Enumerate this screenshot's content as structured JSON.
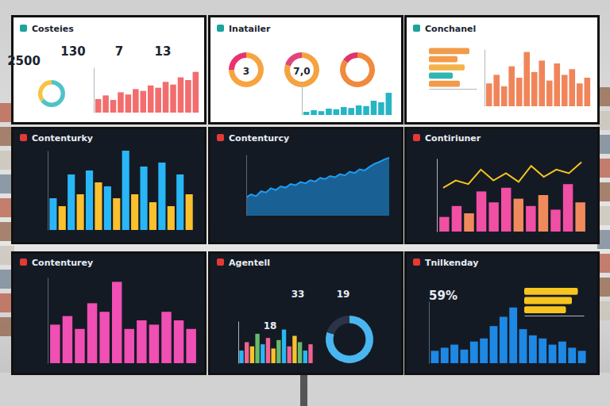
{
  "chart_data": [
    {
      "type": "bar",
      "title": "Costeies",
      "annotations": [
        "2500",
        "130",
        "7",
        "13"
      ],
      "categories": [
        null,
        null,
        null,
        null,
        null,
        null,
        null,
        null,
        null,
        null,
        null,
        null,
        null,
        null
      ],
      "values": [
        30,
        38,
        28,
        45,
        40,
        52,
        48,
        60,
        55,
        68,
        62,
        78,
        72,
        90
      ],
      "color": "#f26d6d",
      "ylim": [
        0,
        100
      ],
      "tick_labels": false
    },
    {
      "type": "donut",
      "values": [
        65,
        35
      ],
      "colors": [
        "#4fc3c9",
        "#f6c344"
      ]
    },
    {
      "type": "donut",
      "title": "Inatailer",
      "annotations": [
        "3"
      ],
      "values": [
        75,
        25
      ],
      "colors": [
        "#f7a440",
        "#e8336f"
      ]
    },
    {
      "type": "donut",
      "annotations": [
        "7,0"
      ],
      "values": [
        80,
        20
      ],
      "colors": [
        "#f4a33f",
        "#e0457b"
      ]
    },
    {
      "type": "donut",
      "values": [
        85,
        15
      ],
      "colors": [
        "#f08a3c",
        "#e2336a"
      ]
    },
    {
      "type": "bar",
      "categories": [
        null,
        null,
        null,
        null,
        null,
        null,
        null,
        null,
        null,
        null,
        null,
        null
      ],
      "values": [
        10,
        15,
        12,
        20,
        18,
        25,
        22,
        30,
        28,
        45,
        40,
        70
      ],
      "color": "#26b5c5",
      "ylim": [
        0,
        100
      ],
      "tick_labels": false
    },
    {
      "type": "bar",
      "title": "Conchanel",
      "orientation": "horizontal",
      "categories": [
        null,
        null,
        null,
        null,
        null
      ],
      "values": [
        85,
        60,
        75,
        50,
        65
      ],
      "colors": [
        "#f29b4b",
        "#f29b4b",
        "#f6b24a",
        "#2fb7b3",
        "#f29b4b"
      ],
      "xlim": [
        0,
        100
      ],
      "tick_labels": false
    },
    {
      "type": "bar",
      "categories": [
        null,
        null,
        null,
        null,
        null,
        null,
        null,
        null,
        null,
        null,
        null,
        null,
        null,
        null
      ],
      "values": [
        40,
        55,
        35,
        70,
        50,
        95,
        60,
        80,
        45,
        75,
        55,
        65,
        40,
        50
      ],
      "color": "#f0855a",
      "ylim": [
        0,
        100
      ],
      "tick_labels": false
    },
    {
      "type": "bar",
      "title": "Contenturky",
      "categories": [
        null,
        null,
        null,
        null,
        null,
        null,
        null,
        null,
        null,
        null,
        null,
        null,
        null,
        null,
        null,
        null
      ],
      "values": [
        40,
        30,
        70,
        45,
        75,
        60,
        55,
        40,
        100,
        45,
        80,
        35,
        85,
        30,
        70,
        45
      ],
      "colors": [
        "#29b6f6",
        "#fbc02d",
        "#29b6f6",
        "#fbc02d",
        "#29b6f6",
        "#fbc02d",
        "#29b6f6",
        "#fbc02d",
        "#29b6f6",
        "#fbc02d",
        "#29b6f6",
        "#fbc02d",
        "#29b6f6",
        "#fbc02d",
        "#29b6f6",
        "#fbc02d"
      ],
      "ylim": [
        0,
        100
      ],
      "tick_labels": false
    },
    {
      "type": "area",
      "title": "Contenturcy",
      "categories": [
        null,
        null,
        null,
        null,
        null,
        null,
        null,
        null,
        null,
        null,
        null,
        null,
        null,
        null,
        null,
        null,
        null,
        null,
        null,
        null,
        null,
        null,
        null,
        null,
        null,
        null,
        null,
        null,
        null,
        null
      ],
      "values": [
        30,
        35,
        32,
        40,
        38,
        45,
        42,
        48,
        46,
        52,
        50,
        55,
        53,
        58,
        56,
        62,
        60,
        65,
        63,
        68,
        66,
        72,
        70,
        76,
        74,
        80,
        85,
        88,
        92,
        95
      ],
      "color": "#1e9df2",
      "ylim": [
        0,
        100
      ],
      "tick_labels": false
    },
    {
      "type": "bar",
      "title": "Contiriuner",
      "categories": [
        null,
        null,
        null,
        null,
        null,
        null,
        null,
        null,
        null,
        null,
        null,
        null
      ],
      "values": [
        20,
        35,
        25,
        55,
        40,
        60,
        45,
        35,
        50,
        30,
        65,
        40
      ],
      "colors": [
        "#f04fa4",
        "#f04fa4",
        "#f08a5d",
        "#f04fa4",
        "#f04fa4",
        "#f04fa4",
        "#f08a5d",
        "#f04fa4",
        "#f08a5d",
        "#f04fa4",
        "#f04fa4",
        "#f08a5d"
      ],
      "ylim": [
        0,
        100
      ],
      "tick_labels": false
    },
    {
      "type": "line",
      "categories": [
        null,
        null,
        null,
        null,
        null,
        null,
        null,
        null,
        null,
        null,
        null,
        null
      ],
      "values": [
        60,
        70,
        65,
        85,
        70,
        80,
        68,
        90,
        75,
        85,
        80,
        95
      ],
      "color": "#f7c51e",
      "ylim": [
        0,
        100
      ],
      "tick_labels": false
    },
    {
      "type": "bar",
      "title": "Contenturey",
      "categories": [
        null,
        null,
        null,
        null,
        null,
        null,
        null,
        null,
        null,
        null,
        null,
        null
      ],
      "values": [
        45,
        55,
        40,
        70,
        60,
        95,
        40,
        50,
        45,
        60,
        50,
        40
      ],
      "color": "#f04fb4",
      "ylim": [
        0,
        100
      ],
      "tick_labels": false
    },
    {
      "type": "donut",
      "title": "Agentell",
      "annotations": [
        "33",
        "19",
        "18"
      ],
      "values": [
        80,
        20
      ],
      "colors": [
        "#49b6f0",
        "#2a3446"
      ]
    },
    {
      "type": "bar",
      "categories": [
        null,
        null,
        null,
        null,
        null,
        null,
        null,
        null,
        null,
        null,
        null,
        null,
        null,
        null
      ],
      "values": [
        30,
        50,
        40,
        70,
        45,
        60,
        35,
        55,
        80,
        40,
        65,
        50,
        30,
        45
      ],
      "colors": [
        "#29b6f6",
        "#f06292",
        "#fbc02d",
        "#66bb6a",
        "#29b6f6",
        "#f06292",
        "#fbc02d",
        "#66bb6a",
        "#29b6f6",
        "#f06292",
        "#fbc02d",
        "#66bb6a",
        "#29b6f6",
        "#f06292"
      ],
      "ylim": [
        0,
        100
      ],
      "tick_labels": false
    },
    {
      "type": "bar",
      "title": "Tnilkenday",
      "annotations": [
        "59%"
      ],
      "categories": [
        null,
        null,
        null,
        null,
        null,
        null,
        null,
        null,
        null,
        null,
        null,
        null,
        null,
        null,
        null,
        null
      ],
      "values": [
        20,
        25,
        30,
        22,
        35,
        40,
        60,
        75,
        90,
        55,
        45,
        40,
        30,
        35,
        25,
        20
      ],
      "color": "#1e88e5",
      "ylim": [
        0,
        100
      ],
      "tick_labels": false
    },
    {
      "type": "bar",
      "orientation": "horizontal",
      "categories": [
        null,
        null,
        null
      ],
      "values": [
        90,
        80,
        70
      ],
      "color": "#f7c51e",
      "xlim": [
        0,
        100
      ],
      "tick_labels": false
    }
  ]
}
